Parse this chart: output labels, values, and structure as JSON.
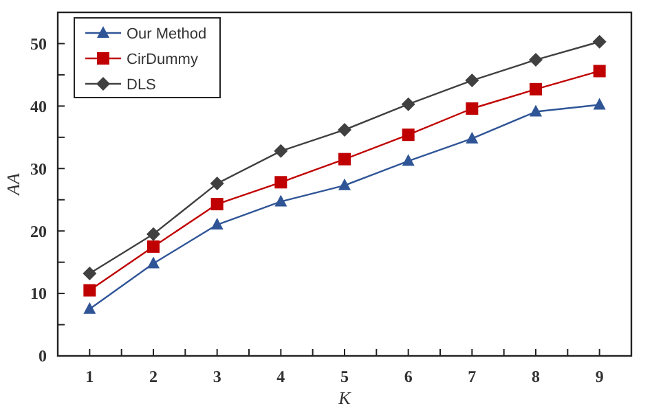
{
  "chart_data": {
    "type": "line",
    "xlabel": "K",
    "ylabel": "AA",
    "x": [
      1,
      2,
      3,
      4,
      5,
      6,
      7,
      8,
      9
    ],
    "xlim": [
      0.5,
      9.5
    ],
    "xticks": [
      1,
      {
        "value": 1.5,
        "label": null
      },
      2,
      {
        "value": 2.5,
        "label": null
      },
      3,
      {
        "value": 3.5,
        "label": null
      },
      4,
      {
        "value": 4.5,
        "label": null
      },
      5,
      {
        "value": 5.5,
        "label": null
      },
      6,
      {
        "value": 6.5,
        "label": null
      },
      7,
      {
        "value": 7.5,
        "label": null
      },
      8,
      {
        "value": 8.5,
        "label": null
      },
      9
    ],
    "ylim": [
      0,
      55
    ],
    "yticks": [
      0,
      {
        "value": 5,
        "label": null
      },
      10,
      {
        "value": 15,
        "label": null
      },
      20,
      {
        "value": 25,
        "label": null
      },
      30,
      {
        "value": 35,
        "label": null
      },
      40,
      {
        "value": 45,
        "label": null
      },
      50
    ],
    "legend": "top left",
    "grid": false,
    "series": [
      {
        "name": "Our Method",
        "color": "#2f5597",
        "marker": "triangle",
        "values": [
          7.5,
          14.8,
          21,
          24.7,
          27.3,
          31.2,
          34.8,
          39.1,
          40.2
        ]
      },
      {
        "name": "CirDummy",
        "color": "#c00000",
        "marker": "square",
        "values": [
          10.5,
          17.5,
          24.3,
          27.8,
          31.5,
          35.4,
          39.6,
          42.7,
          45.6
        ]
      },
      {
        "name": "DLS",
        "color": "#404040",
        "marker": "diamond",
        "values": [
          13.2,
          19.5,
          27.6,
          32.8,
          36.2,
          40.3,
          44.1,
          47.4,
          50.3
        ]
      }
    ]
  }
}
